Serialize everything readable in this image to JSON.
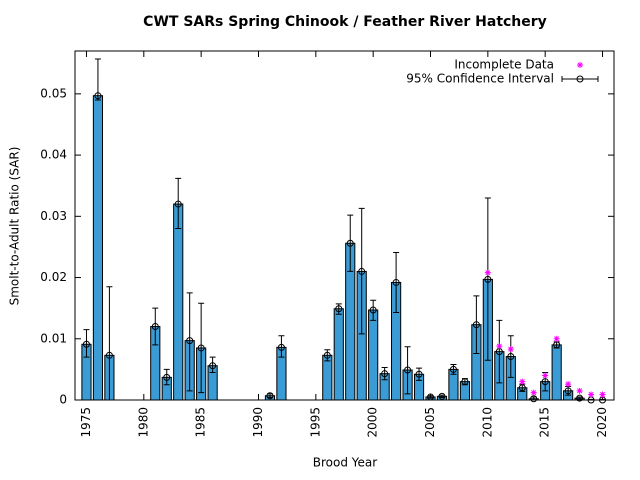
{
  "chart_data": {
    "type": "bar",
    "title": "CWT SARs Spring Chinook  / Feather River Hatchery",
    "x_label": "Brood Year",
    "y_label": "Smolt-to-Adult Ratio (SAR)",
    "xlim": [
      1974,
      2021
    ],
    "xticks": [
      1975,
      1980,
      1985,
      1990,
      1995,
      2000,
      2005,
      2010,
      2015,
      2020
    ],
    "ylim": [
      0,
      0.057
    ],
    "yticks": [
      0,
      0.01,
      0.02,
      0.03,
      0.04,
      0.05
    ],
    "legend": "top right",
    "series": [
      {
        "name": "95% Confidence Interval",
        "color": "#3a9bd5",
        "x": [
          1975,
          1976,
          1977,
          1981,
          1982,
          1983,
          1984,
          1985,
          1986,
          1991,
          1992,
          1996,
          1997,
          1998,
          1999,
          2000,
          2001,
          2002,
          2003,
          2004,
          2005,
          2006,
          2007,
          2008,
          2009,
          2010,
          2011,
          2012,
          2013,
          2014,
          2015,
          2016,
          2017,
          2018,
          2019,
          2020
        ],
        "values": [
          0.0091,
          0.0497,
          0.0073,
          0.012,
          0.0037,
          0.032,
          0.0097,
          0.0085,
          0.0056,
          0.0007,
          0.0086,
          0.0073,
          0.0149,
          0.0256,
          0.021,
          0.0147,
          0.0043,
          0.0192,
          0.0049,
          0.0042,
          0.0005,
          0.0006,
          0.005,
          0.003,
          0.0123,
          0.0197,
          0.0079,
          0.0071,
          0.002,
          0.0002,
          0.003,
          0.009,
          0.0015,
          0.0003,
          0,
          0
        ],
        "ci_low": [
          0.007,
          0.049,
          0,
          0.009,
          0.0025,
          0.028,
          0.0015,
          0.0012,
          0.0045,
          0.0004,
          0.007,
          0.0064,
          0.014,
          0.021,
          0.0108,
          0.013,
          0.0033,
          0.0143,
          0.001,
          0.0032,
          0.0003,
          0.0004,
          0.0042,
          0.0025,
          0.0076,
          0.0065,
          0.0028,
          0.0037,
          0.0014,
          0,
          0.0015,
          0.0085,
          0.0008,
          0.0001,
          0,
          0
        ],
        "ci_high": [
          0.0115,
          0.0557,
          0.0185,
          0.015,
          0.005,
          0.0362,
          0.0175,
          0.0158,
          0.007,
          0.001,
          0.0105,
          0.0082,
          0.0157,
          0.0302,
          0.0313,
          0.0163,
          0.0053,
          0.0241,
          0.0087,
          0.0052,
          0.0007,
          0.0008,
          0.0058,
          0.0035,
          0.017,
          0.033,
          0.013,
          0.0105,
          0.0026,
          0.0005,
          0.0045,
          0.0095,
          0.0022,
          0.0005,
          0.0001,
          0.0001
        ]
      },
      {
        "name": "Incomplete Data",
        "color": "#ff00ff",
        "x": [
          2010,
          2011,
          2012,
          2013,
          2014,
          2015,
          2016,
          2017,
          2018,
          2019,
          2020
        ],
        "values": [
          0.0208,
          0.0088,
          0.0083,
          0.003,
          0.0012,
          0.004,
          0.01,
          0.0026,
          0.0015,
          0.0009,
          0.0009
        ]
      }
    ]
  }
}
